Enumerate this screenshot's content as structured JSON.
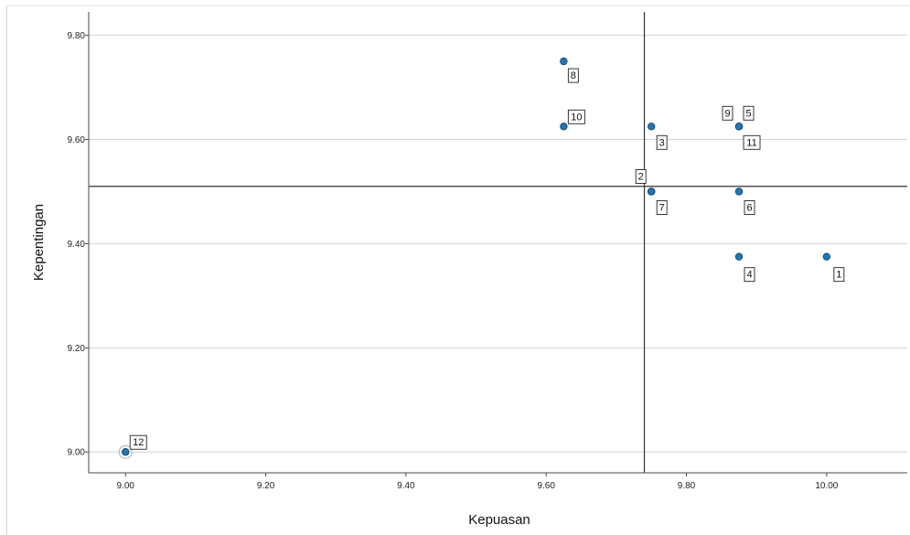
{
  "chart_data": {
    "type": "scatter",
    "title": "",
    "xlabel": "Kepuasan",
    "ylabel": "Kepentingan",
    "xlim": [
      8.9475,
      10.115
    ],
    "ylim": [
      8.96,
      9.845
    ],
    "xticks": [
      "9.00",
      "9.20",
      "9.40",
      "9.60",
      "9.80",
      "10.00"
    ],
    "yticks": [
      "9.00",
      "9.20",
      "9.40",
      "9.60",
      "9.80"
    ],
    "grid": "horizontal",
    "reference_lines": {
      "x": 9.74,
      "y": 9.51
    },
    "points": [
      {
        "label": "1",
        "x": 10.0,
        "y": 9.375
      },
      {
        "label": "2",
        "x": 9.75,
        "y": 9.5
      },
      {
        "label": "3",
        "x": 9.75,
        "y": 9.625
      },
      {
        "label": "4",
        "x": 9.875,
        "y": 9.375
      },
      {
        "label": "5",
        "x": 9.875,
        "y": 9.625
      },
      {
        "label": "6",
        "x": 9.875,
        "y": 9.5
      },
      {
        "label": "7",
        "x": 9.75,
        "y": 9.5
      },
      {
        "label": "8",
        "x": 9.625,
        "y": 9.75
      },
      {
        "label": "9",
        "x": 9.875,
        "y": 9.625
      },
      {
        "label": "10",
        "x": 9.625,
        "y": 9.625
      },
      {
        "label": "11",
        "x": 9.875,
        "y": 9.625
      },
      {
        "label": "12",
        "x": 9.0,
        "y": 9.0
      }
    ],
    "colors": {
      "point": "#1f77b4",
      "point_edge": "#0d3f66",
      "grid": "#d2d2d2",
      "axis": "#4a4a4a",
      "reference": "#333333"
    }
  }
}
